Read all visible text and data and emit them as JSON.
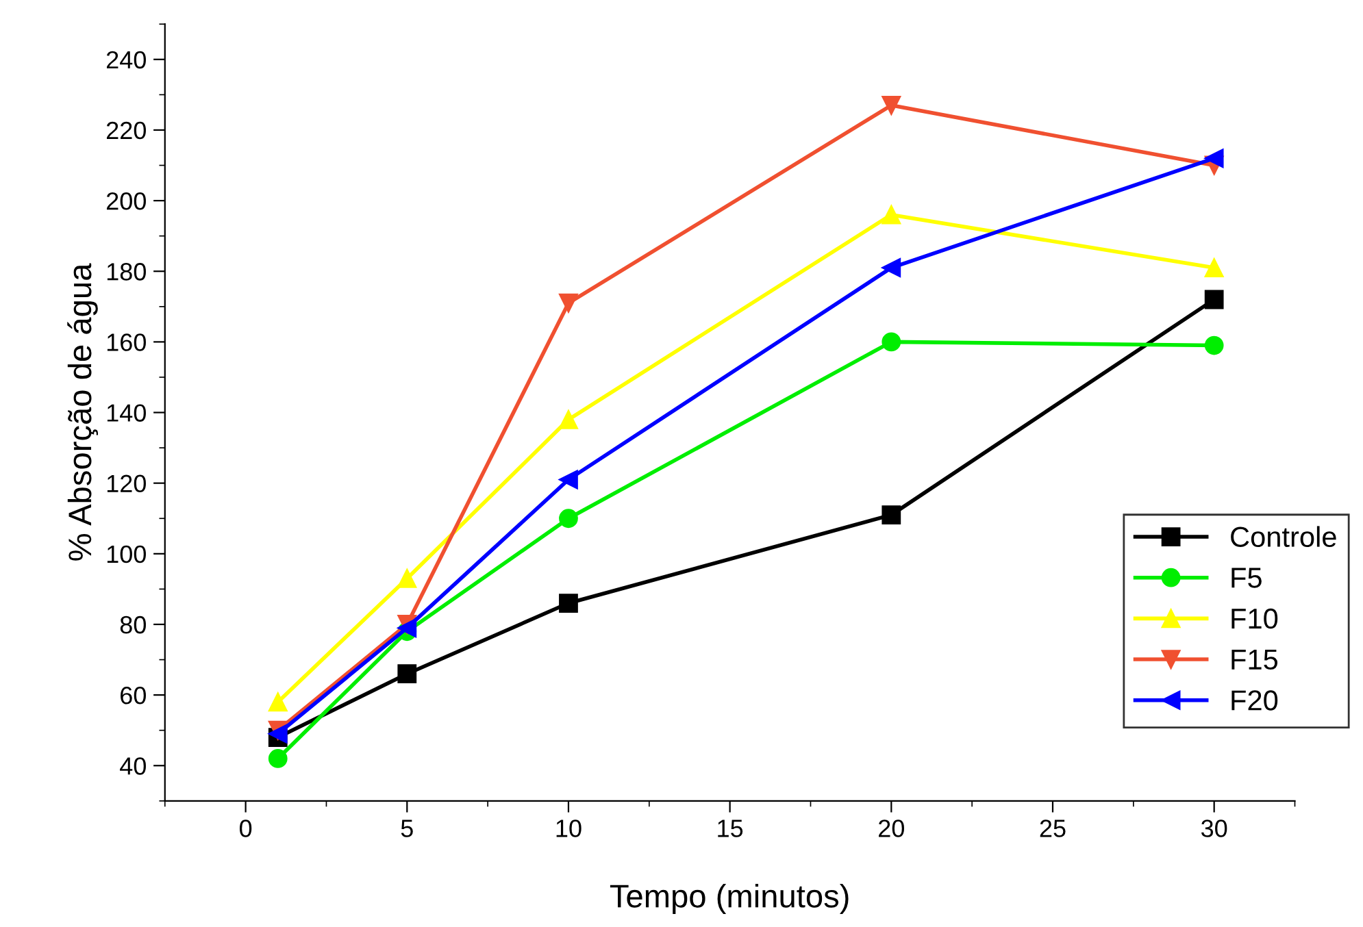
{
  "chart_data": {
    "type": "line",
    "xlabel": "Tempo (minutos)",
    "ylabel": "% Absorção de água",
    "x": [
      1,
      5,
      10,
      20,
      30
    ],
    "series": [
      {
        "name": "Controle",
        "color": "#000000",
        "marker": "square",
        "values": [
          48,
          66,
          86,
          111,
          172
        ]
      },
      {
        "name": "F5",
        "color": "#00ee00",
        "marker": "circle",
        "values": [
          42,
          78,
          110,
          160,
          159
        ]
      },
      {
        "name": "F10",
        "color": "#ffff00",
        "marker": "triangle",
        "values": [
          58,
          93,
          138,
          196,
          181
        ]
      },
      {
        "name": "F15",
        "color": "#f05030",
        "marker": "triangle_down",
        "values": [
          50,
          80,
          171,
          227,
          210
        ]
      },
      {
        "name": "F20",
        "color": "#0000ff",
        "marker": "triangle_left",
        "values": [
          49,
          79,
          121,
          181,
          212
        ]
      }
    ],
    "xlim": [
      -2.5,
      32.5
    ],
    "xticks": [
      0,
      5,
      10,
      15,
      20,
      25,
      30
    ],
    "ylim": [
      30,
      250
    ],
    "yticks": [
      40,
      60,
      80,
      100,
      120,
      140,
      160,
      180,
      200,
      220,
      240
    ],
    "grid": false,
    "legend": "right",
    "line_style": "solid"
  }
}
